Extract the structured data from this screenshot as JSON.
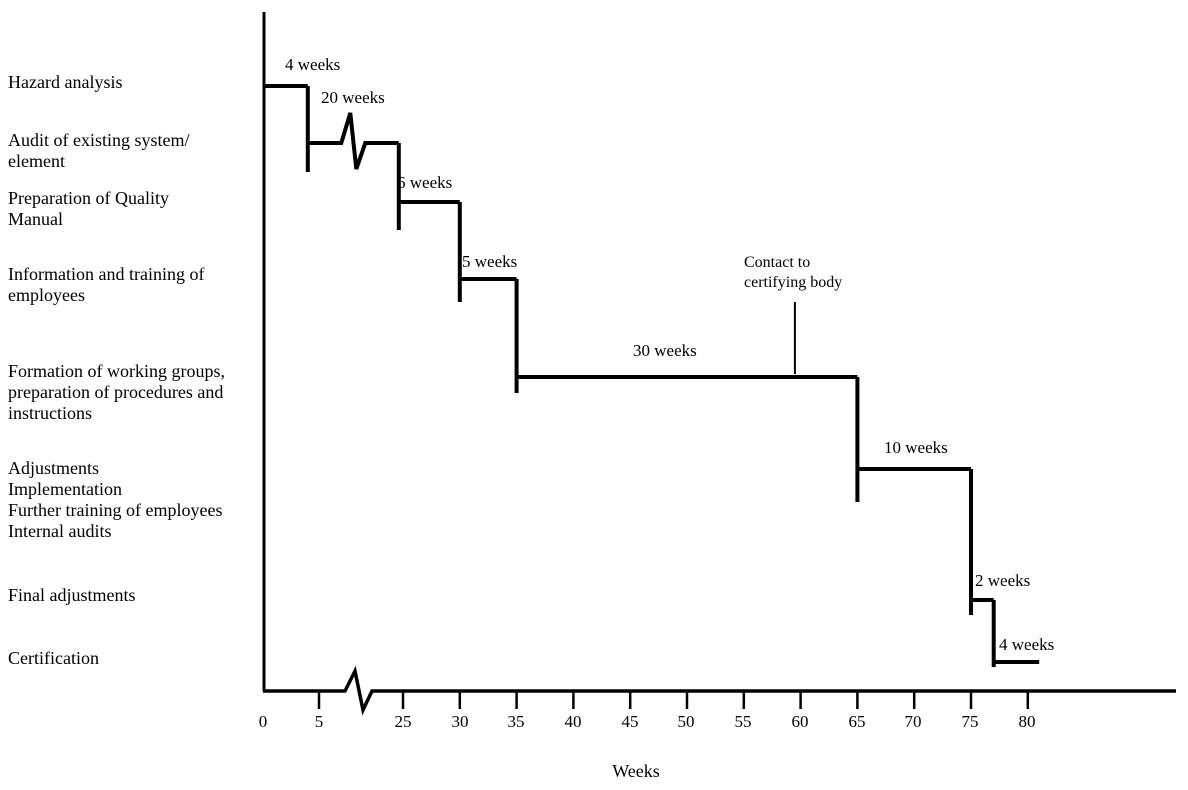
{
  "figure": {
    "background_color": "#ffffff",
    "ink_color": "#000000"
  },
  "chart_data": {
    "type": "gantt-step",
    "title": "",
    "xlabel": "Weeks",
    "ylabel": "",
    "xlim": [
      0,
      81
    ],
    "grid": false,
    "x_ticks": [
      0,
      5,
      25,
      30,
      35,
      40,
      45,
      50,
      55,
      60,
      65,
      70,
      75,
      80
    ],
    "x_axis_break_between": [
      5,
      25
    ],
    "tasks": [
      {
        "lines": [
          "Hazard analysis"
        ],
        "start_week": 0,
        "end_week": 4,
        "duration_label": "4 weeks"
      },
      {
        "lines": [
          "Audit of existing system/",
          "element"
        ],
        "start_week": 4,
        "end_week": 24,
        "duration_label": "20 weeks",
        "bar_break": true
      },
      {
        "lines": [
          "Preparation of Quality",
          "Manual"
        ],
        "start_week": 24,
        "end_week": 30,
        "duration_label": "6 weeks"
      },
      {
        "lines": [
          "Information and training of",
          "employees"
        ],
        "start_week": 30,
        "end_week": 35,
        "duration_label": "5 weeks"
      },
      {
        "lines": [
          "Formation of working groups,",
          "preparation of procedures and",
          "instructions"
        ],
        "start_week": 35,
        "end_week": 65,
        "duration_label": "30 weeks"
      },
      {
        "lines": [
          "Adjustments",
          "Implementation",
          "Further training of employees",
          "Internal audits"
        ],
        "start_week": 65,
        "end_week": 75,
        "duration_label": "10 weeks"
      },
      {
        "lines": [
          "Final adjustments"
        ],
        "start_week": 75,
        "end_week": 77,
        "duration_label": "2 weeks"
      },
      {
        "lines": [
          "Certification"
        ],
        "start_week": 77,
        "end_week": 81,
        "duration_label": "4 weeks"
      }
    ],
    "annotation": {
      "lines": [
        "Contact to",
        "certifying body"
      ],
      "week": 59.5
    }
  }
}
